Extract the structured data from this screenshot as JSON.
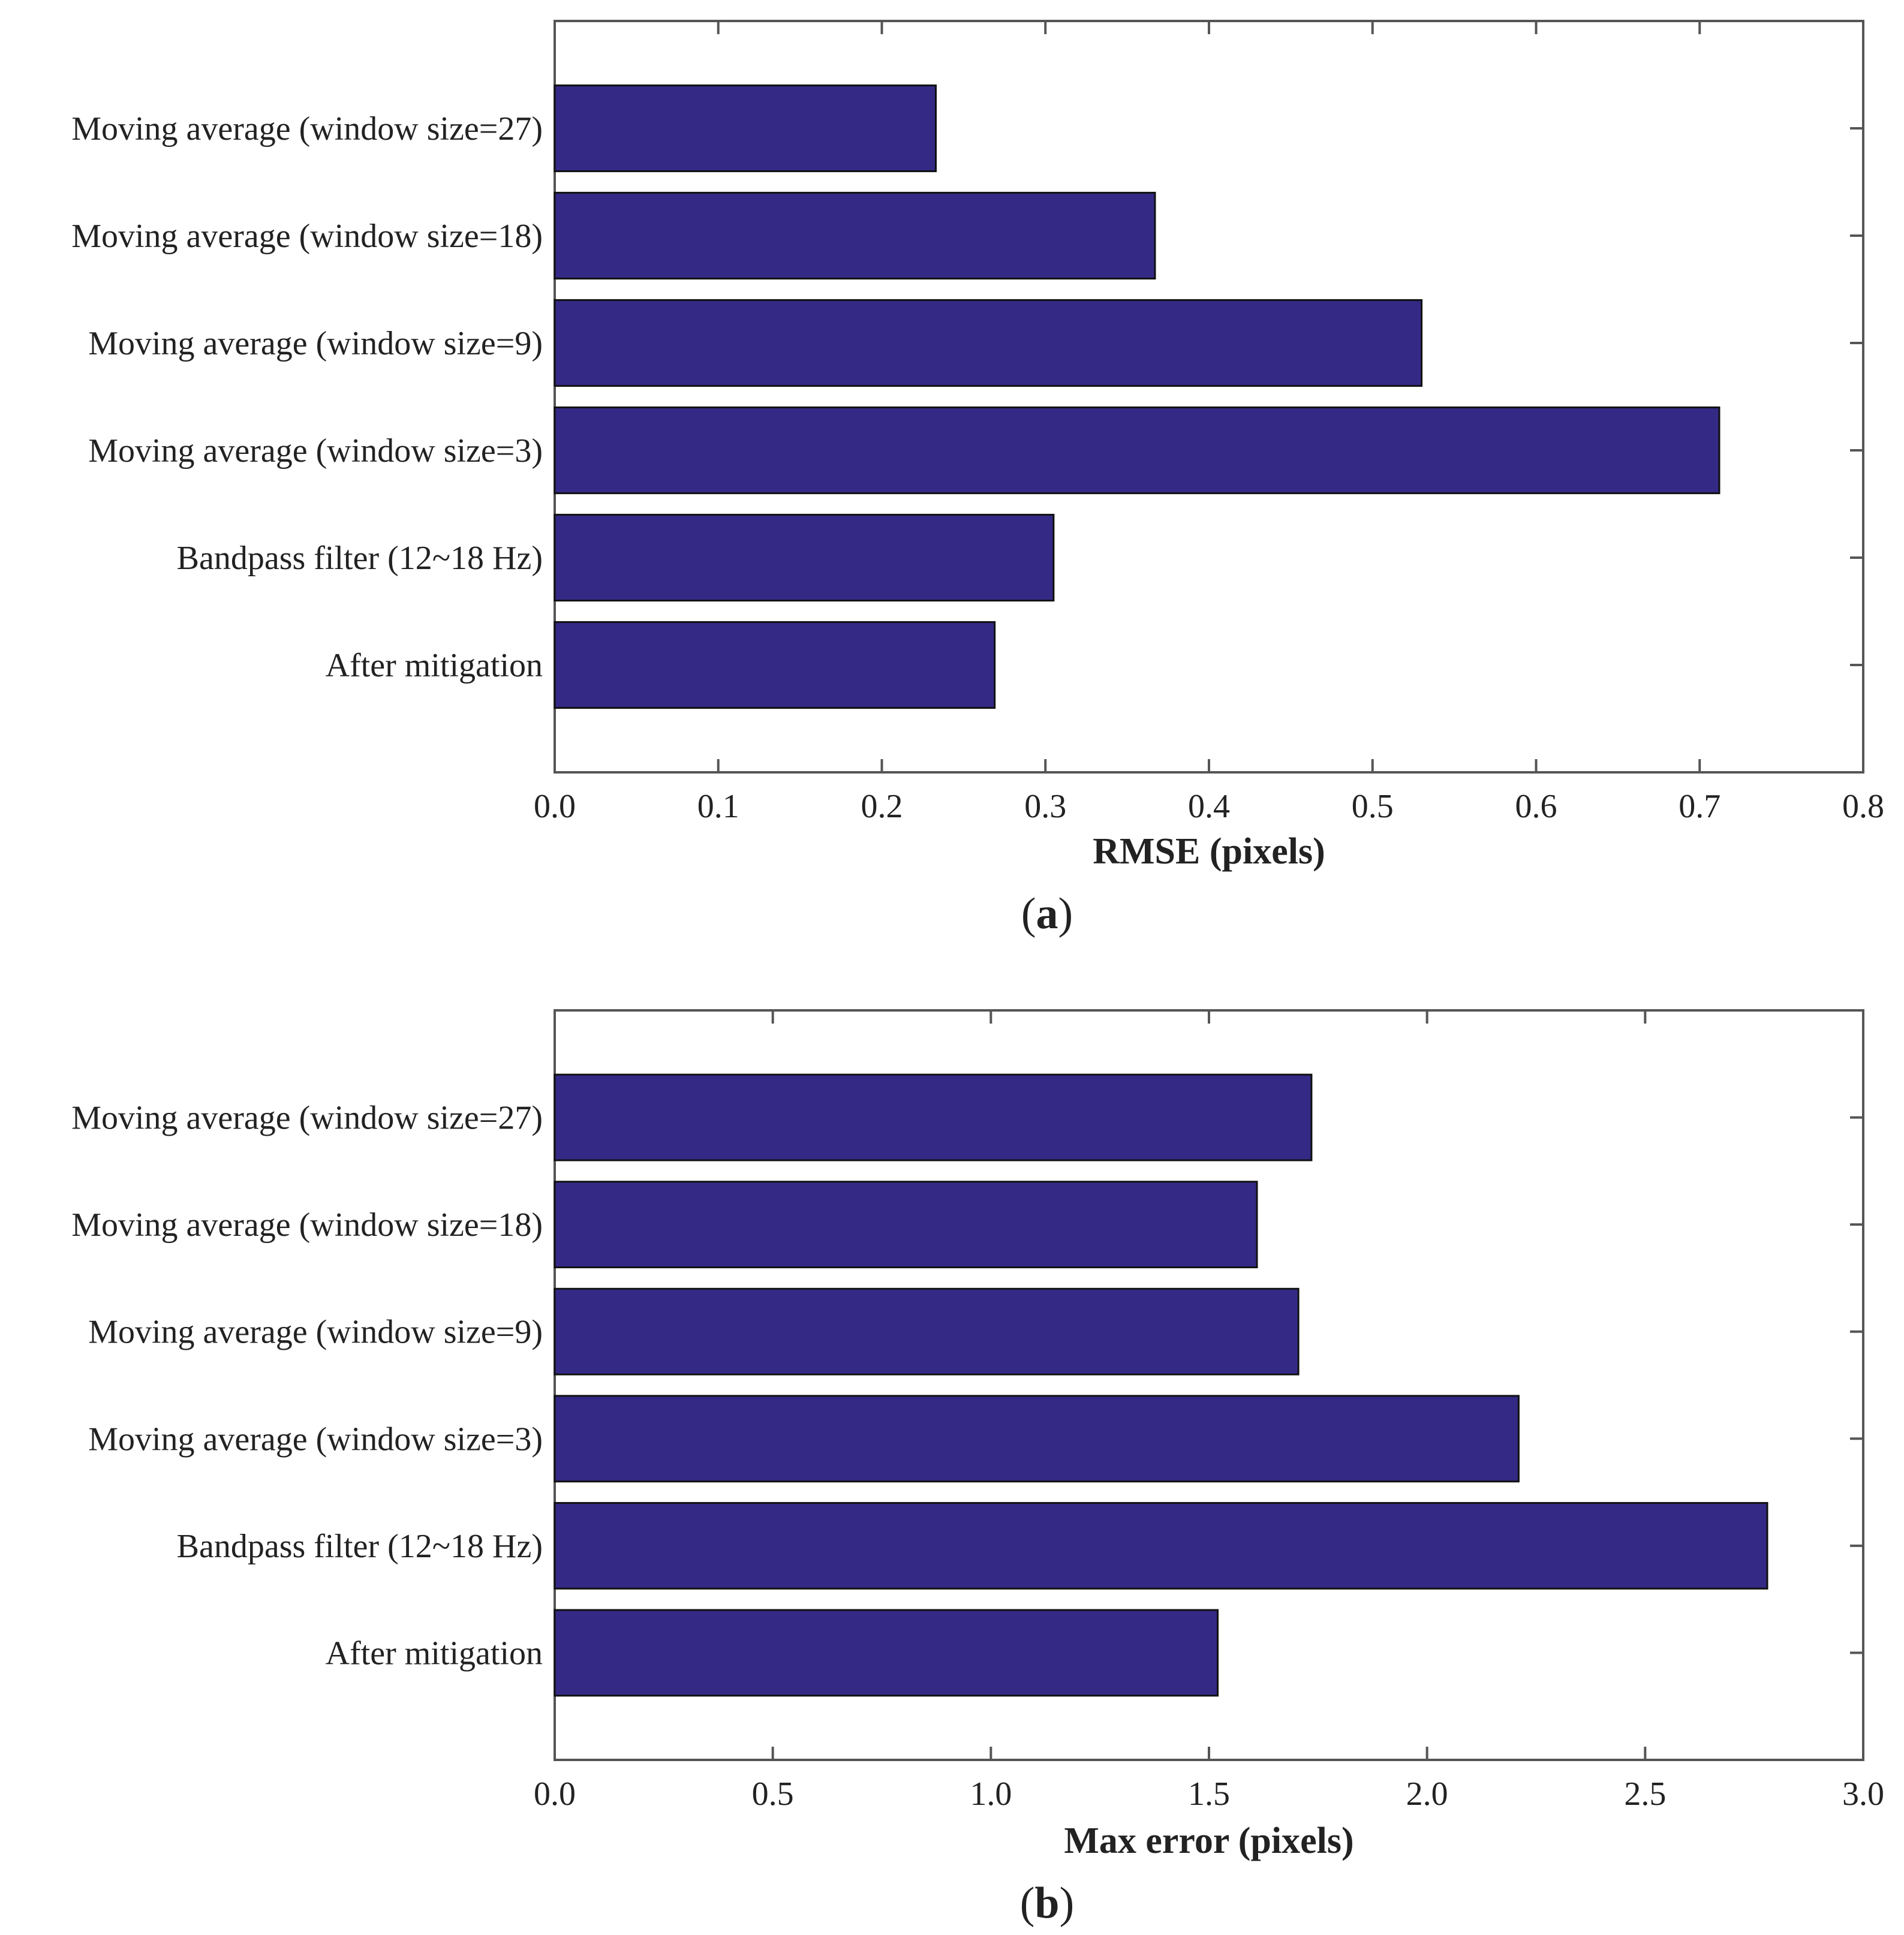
{
  "chart_data": [
    {
      "panel": "a",
      "type": "bar",
      "orientation": "horizontal",
      "categories": [
        "Moving average (window size=27)",
        "Moving average (window size=18)",
        "Moving average (window size=9)",
        "Moving average (window size=3)",
        "Bandpass filter (12~18 Hz)",
        "After mitigation"
      ],
      "values": [
        0.233,
        0.367,
        0.53,
        0.712,
        0.305,
        0.269
      ],
      "xlabel": "RMSE (pixels)",
      "ylabel": "",
      "xlim": [
        0,
        0.8
      ],
      "xticks": [
        0.0,
        0.1,
        0.2,
        0.3,
        0.4,
        0.5,
        0.6,
        0.7,
        0.8
      ],
      "xtick_labels": [
        "0.0",
        "0.1",
        "0.2",
        "0.3",
        "0.4",
        "0.5",
        "0.6",
        "0.7",
        "0.8"
      ],
      "caption_open": "(",
      "caption_letter": "a",
      "caption_close": ")",
      "bar_color": "#342a85",
      "grid": false
    },
    {
      "panel": "b",
      "type": "bar",
      "orientation": "horizontal",
      "categories": [
        "Moving average (window size=27)",
        "Moving average (window size=18)",
        "Moving average (window size=9)",
        "Moving average (window size=3)",
        "Bandpass filter (12~18 Hz)",
        "After mitigation"
      ],
      "values": [
        1.735,
        1.61,
        1.705,
        2.21,
        2.78,
        1.52
      ],
      "xlabel": "Max error (pixels)",
      "ylabel": "",
      "xlim": [
        0,
        3.0
      ],
      "xticks": [
        0.0,
        0.5,
        1.0,
        1.5,
        2.0,
        2.5,
        3.0
      ],
      "xtick_labels": [
        "0.0",
        "0.5",
        "1.0",
        "1.5",
        "2.0",
        "2.5",
        "3.0"
      ],
      "caption_open": "(",
      "caption_letter": "b",
      "caption_close": ")",
      "bar_color": "#342a85",
      "grid": false
    }
  ]
}
